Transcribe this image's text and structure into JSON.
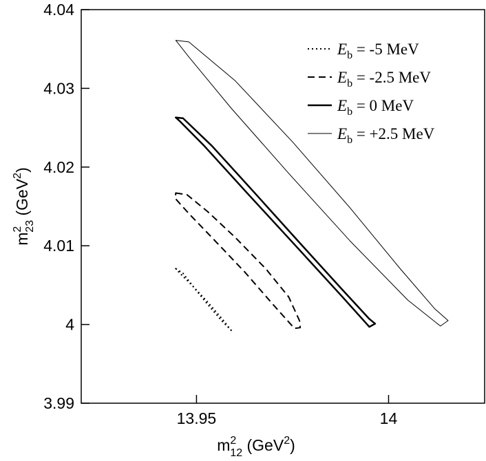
{
  "chart_data": {
    "type": "line",
    "title": "",
    "xlabel": {
      "base": "m",
      "sup": "2",
      "sub": "12",
      "unit_prefix": " (GeV",
      "unit_sup": "2",
      "unit_suffix": ")"
    },
    "ylabel": {
      "base": "m",
      "sup": "2",
      "sub": "23",
      "unit_prefix": " (GeV",
      "unit_sup": "2",
      "unit_suffix": ")"
    },
    "xlim": [
      13.92,
      14.025
    ],
    "ylim": [
      3.99,
      4.04
    ],
    "xticks": [
      {
        "value": 13.95,
        "label": "13.95"
      },
      {
        "value": 14.0,
        "label": "14"
      }
    ],
    "yticks": [
      {
        "value": 3.99,
        "label": "3.99"
      },
      {
        "value": 4.0,
        "label": "4"
      },
      {
        "value": 4.01,
        "label": "4.01"
      },
      {
        "value": 4.02,
        "label": "4.02"
      },
      {
        "value": 4.03,
        "label": "4.03"
      },
      {
        "value": 4.04,
        "label": "4.04"
      }
    ],
    "grid": false,
    "legend_position": "top-right",
    "series": [
      {
        "name": "E_b = -5 MeV",
        "legend_sym": "E",
        "legend_sub": "b",
        "legend_value": " = -5 MeV",
        "style": "dotted",
        "color": "#000000",
        "x": [
          13.9446,
          13.9465,
          13.9495,
          13.953,
          13.9567,
          13.9594,
          13.9591,
          13.9567,
          13.953,
          13.949,
          13.9455,
          13.9446
        ],
        "y": [
          4.0071,
          4.0065,
          4.0046,
          4.0025,
          4.0004,
          3.9991,
          3.9992,
          4.0007,
          4.0028,
          4.0049,
          4.0066,
          4.0071
        ]
      },
      {
        "name": "E_b = -2.5 MeV",
        "legend_sym": "E",
        "legend_sub": "b",
        "legend_value": " = -2.5 MeV",
        "style": "dashed",
        "color": "#000000",
        "x": [
          13.9446,
          13.9475,
          13.953,
          13.96,
          13.968,
          13.974,
          13.9768,
          13.977,
          13.9755,
          13.97,
          13.9625,
          13.9545,
          13.948,
          13.9445,
          13.9446
        ],
        "y": [
          4.0167,
          4.0165,
          4.0143,
          4.0111,
          4.0071,
          4.0035,
          4.0005,
          3.9996,
          3.9995,
          4.0025,
          4.0067,
          4.0108,
          4.0141,
          4.016,
          4.0167
        ]
      },
      {
        "name": "E_b = 0 MeV",
        "legend_sym": "E",
        "legend_sub": "b",
        "legend_value": " =  0 MeV",
        "style": "solid",
        "color": "#000000",
        "width": 2.5,
        "x": [
          13.9446,
          13.9465,
          13.954,
          13.965,
          13.977,
          13.988,
          13.995,
          13.9965,
          13.995,
          13.988,
          13.976,
          13.963,
          13.952,
          13.9455,
          13.9446
        ],
        "y": [
          4.0263,
          4.0262,
          4.0227,
          4.0168,
          4.0103,
          4.0044,
          4.0007,
          4.0001,
          3.9997,
          4.0035,
          4.0099,
          4.0168,
          4.0227,
          4.0259,
          4.0263
        ]
      },
      {
        "name": "E_b = +2.5 MeV",
        "legend_sym": "E",
        "legend_sub": "b",
        "legend_value": " = +2.5 MeV",
        "style": "solid",
        "color": "#000000",
        "width": 1,
        "x": [
          13.9446,
          13.948,
          13.96,
          13.975,
          13.99,
          14.003,
          14.012,
          14.0155,
          14.0135,
          14.005,
          13.99,
          13.974,
          13.959,
          13.948,
          13.9446
        ],
        "y": [
          4.0361,
          4.0359,
          4.031,
          4.0232,
          4.0148,
          4.0071,
          4.002,
          4.0005,
          3.9998,
          4.0031,
          4.0106,
          4.0192,
          4.0275,
          4.034,
          4.0361
        ]
      }
    ]
  }
}
